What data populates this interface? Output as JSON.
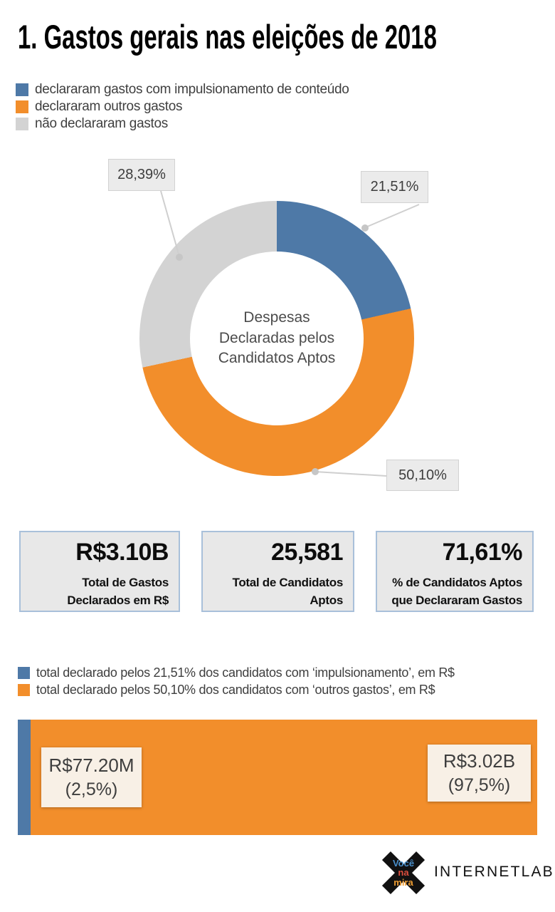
{
  "page": {
    "title": "1. Gastos gerais nas eleições de 2018"
  },
  "legend_donut": {
    "items": [
      {
        "label": "declararam gastos com impulsionamento de conteúdo",
        "color": "#4e79a7"
      },
      {
        "label": "declararam outros gastos",
        "color": "#f28e2b"
      },
      {
        "label": "não declararam gastos",
        "color": "#d3d3d3"
      }
    ]
  },
  "legend_bar": {
    "items": [
      {
        "label": "total declarado pelos 21,51% dos candidatos com ‘impulsionamento’, em R$",
        "color": "#4e79a7"
      },
      {
        "label": "total declarado pelos 50,10% dos candidatos com ‘outros gastos’, em R$",
        "color": "#f28e2b"
      }
    ]
  },
  "chart_data": [
    {
      "type": "pie",
      "subtype": "donut",
      "title": "Despesas Declaradas pelos Candidatos Aptos",
      "center_lines": [
        "Despesas",
        "Declaradas pelos",
        "Candidatos Aptos"
      ],
      "start_angle_deg": 0,
      "direction": "clockwise",
      "unit": "%",
      "segments": [
        {
          "name": "declararam gastos com impulsionamento de conteúdo",
          "value": 21.51,
          "label": "21,51%",
          "color": "#4e79a7"
        },
        {
          "name": "declararam outros gastos",
          "value": 50.1,
          "label": "50,10%",
          "color": "#f28e2b"
        },
        {
          "name": "não declararam gastos",
          "value": 28.39,
          "label": "28,39%",
          "color": "#d3d3d3"
        }
      ]
    },
    {
      "type": "bar",
      "subtype": "stacked-horizontal-100pct",
      "unit": "R$",
      "series": [
        {
          "name": "total declarado pelos 21,51% dos candidatos com ‘impulsionamento’, em R$",
          "value_label": "R$77.20M",
          "pct": 2.5,
          "pct_label": "(2,5%)",
          "color": "#4e79a7"
        },
        {
          "name": "total declarado pelos 50,10% dos candidatos com ‘outros gastos’, em R$",
          "value_label": "R$3.02B",
          "pct": 97.5,
          "pct_label": "(97,5%)",
          "color": "#f28e2b"
        }
      ]
    }
  ],
  "stats": [
    {
      "value": "R$3.10B",
      "label": "Total de Gastos Declarados em R$"
    },
    {
      "value": "25,581",
      "label": "Total de Candidatos Aptos"
    },
    {
      "value": "71,61%",
      "label": "% de Candidatos Aptos que Declararam Gastos"
    }
  ],
  "footer": {
    "voce_na_mira": {
      "line1": "Você",
      "line2": "na",
      "line3": "mira"
    },
    "internetlab": "INTERNETLAB"
  }
}
